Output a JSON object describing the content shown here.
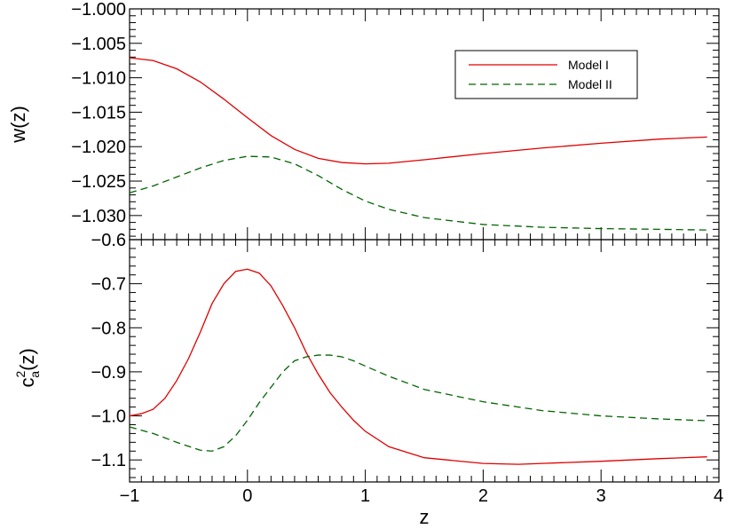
{
  "chart_data": [
    {
      "type": "line",
      "ylabel": "w(z)",
      "xlim": [
        -1,
        4
      ],
      "ylim": [
        -1.0335,
        -1.0
      ],
      "x_ticks": [
        "−1",
        "0",
        "1",
        "2",
        "3",
        "4"
      ],
      "y_ticks": [
        "−1.000",
        "−1.005",
        "−1.010",
        "−1.015",
        "−1.020",
        "−1.025",
        "−1.030"
      ],
      "legend": {
        "location": "top-right"
      },
      "series": [
        {
          "name": "Model I",
          "color": "#e00000",
          "dash": "solid",
          "x": [
            -1.0,
            -0.8,
            -0.6,
            -0.4,
            -0.2,
            0.0,
            0.2,
            0.4,
            0.6,
            0.8,
            1.0,
            1.2,
            1.5,
            2.0,
            2.5,
            3.0,
            3.5,
            3.9
          ],
          "y": [
            -1.0071,
            -1.0075,
            -1.0087,
            -1.0106,
            -1.0131,
            -1.0158,
            -1.0184,
            -1.0204,
            -1.0217,
            -1.0223,
            -1.0225,
            -1.0224,
            -1.0219,
            -1.021,
            -1.0202,
            -1.0195,
            -1.0189,
            -1.0186
          ]
        },
        {
          "name": "Model II",
          "color": "#006400",
          "dash": "dashed",
          "x": [
            -1.0,
            -0.8,
            -0.6,
            -0.4,
            -0.2,
            0.0,
            0.2,
            0.4,
            0.6,
            0.8,
            1.0,
            1.2,
            1.5,
            2.0,
            2.5,
            3.0,
            3.5,
            3.9
          ],
          "y": [
            -1.0267,
            -1.0257,
            -1.0244,
            -1.0231,
            -1.022,
            -1.0214,
            -1.0215,
            -1.0225,
            -1.0242,
            -1.0262,
            -1.0279,
            -1.0291,
            -1.0303,
            -1.0313,
            -1.0317,
            -1.0319,
            -1.032,
            -1.0321
          ]
        }
      ]
    },
    {
      "type": "line",
      "ylabel": "c_a^2(z)",
      "ylabel_main": "c",
      "ylabel_sup": "2",
      "ylabel_sub": "a",
      "ylabel_tail": "(z)",
      "xlabel": "z",
      "xlim": [
        -1,
        4
      ],
      "ylim": [
        -1.15,
        -0.6
      ],
      "x_ticks": [
        "−1",
        "0",
        "1",
        "2",
        "3",
        "4"
      ],
      "y_ticks": [
        "−0.6",
        "−0.7",
        "−0.8",
        "−0.9",
        "−1.0",
        "−1.1"
      ],
      "series": [
        {
          "name": "Model I",
          "color": "#e00000",
          "dash": "solid",
          "x": [
            -1.0,
            -0.9,
            -0.8,
            -0.7,
            -0.6,
            -0.5,
            -0.4,
            -0.3,
            -0.2,
            -0.1,
            0.0,
            0.1,
            0.2,
            0.3,
            0.4,
            0.5,
            0.6,
            0.7,
            0.8,
            0.9,
            1.0,
            1.2,
            1.5,
            2.0,
            2.3,
            2.5,
            3.0,
            3.5,
            3.9
          ],
          "y": [
            -1.0,
            -0.995,
            -0.985,
            -0.96,
            -0.92,
            -0.87,
            -0.81,
            -0.745,
            -0.7,
            -0.672,
            -0.667,
            -0.676,
            -0.705,
            -0.75,
            -0.8,
            -0.857,
            -0.905,
            -0.947,
            -0.98,
            -1.01,
            -1.035,
            -1.07,
            -1.095,
            -1.108,
            -1.11,
            -1.108,
            -1.103,
            -1.097,
            -1.093
          ]
        },
        {
          "name": "Model II",
          "color": "#006400",
          "dash": "dashed",
          "x": [
            -1.0,
            -0.8,
            -0.6,
            -0.4,
            -0.3,
            -0.2,
            -0.1,
            0.0,
            0.1,
            0.2,
            0.3,
            0.4,
            0.5,
            0.6,
            0.7,
            0.8,
            0.9,
            1.0,
            1.2,
            1.5,
            2.0,
            2.5,
            3.0,
            3.5,
            3.9
          ],
          "y": [
            -1.025,
            -1.04,
            -1.06,
            -1.078,
            -1.08,
            -1.07,
            -1.045,
            -1.01,
            -0.97,
            -0.935,
            -0.9,
            -0.875,
            -0.866,
            -0.862,
            -0.862,
            -0.866,
            -0.875,
            -0.887,
            -0.91,
            -0.94,
            -0.968,
            -0.988,
            -1.0,
            -1.007,
            -1.011
          ]
        }
      ]
    }
  ]
}
